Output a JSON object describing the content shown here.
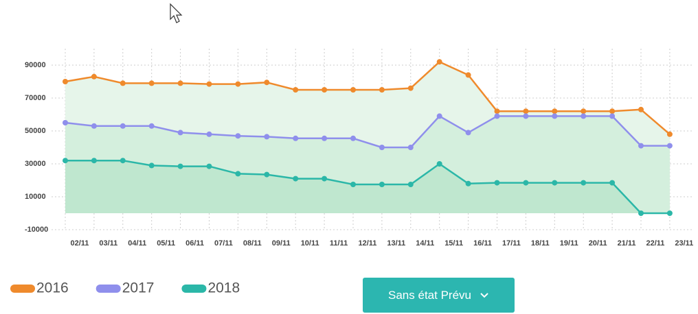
{
  "chart_data": {
    "type": "line",
    "categories": [
      "02/11",
      "03/11",
      "04/11",
      "05/11",
      "06/11",
      "07/11",
      "08/11",
      "09/11",
      "10/11",
      "11/11",
      "12/11",
      "13/11",
      "14/11",
      "15/11",
      "16/11",
      "17/11",
      "18/11",
      "19/11",
      "20/11",
      "21/11",
      "22/11",
      "23/11"
    ],
    "series": [
      {
        "name": "2016",
        "color": "#ef8a2c",
        "fill": "#e6f5ea",
        "values": [
          80000,
          83000,
          79000,
          79000,
          79000,
          78500,
          78500,
          79500,
          75000,
          75000,
          75000,
          75000,
          76000,
          92000,
          84000,
          62000,
          62000,
          62000,
          62000,
          62000,
          63000,
          48000
        ]
      },
      {
        "name": "2017",
        "color": "#8f8fec",
        "fill": "#d4efdd",
        "values": [
          55000,
          53000,
          53000,
          53000,
          49000,
          48000,
          47000,
          46500,
          45500,
          45500,
          45500,
          40000,
          40000,
          59000,
          49000,
          59000,
          59000,
          59000,
          59000,
          59000,
          41000,
          41000
        ]
      },
      {
        "name": "2018",
        "color": "#2bb7a8",
        "fill": "#bfe7cf",
        "values": [
          32000,
          32000,
          32000,
          29000,
          28500,
          28500,
          24000,
          23500,
          21000,
          21000,
          17500,
          17500,
          17500,
          30000,
          18000,
          18500,
          18500,
          18500,
          18500,
          18500,
          0,
          0
        ]
      }
    ],
    "ylim": [
      -10000,
      100000
    ],
    "yticks": [
      -10000,
      10000,
      30000,
      50000,
      70000,
      90000
    ],
    "grid": true
  },
  "button": {
    "label": "Sans état Prévu"
  }
}
